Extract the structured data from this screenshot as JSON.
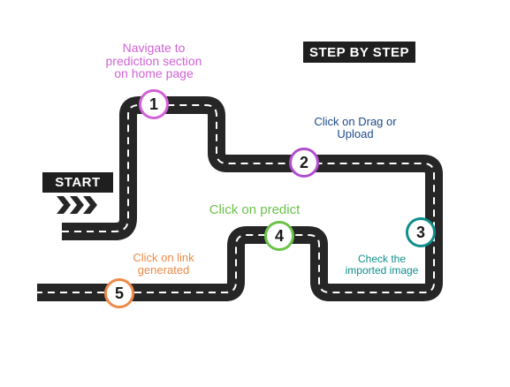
{
  "title": "STEP BY STEP",
  "start_label": "START",
  "colors": {
    "road": "#262626",
    "lane": "#ffffff",
    "step1": "#d162d6",
    "step2": "#b14ed0",
    "step3": "#0f8f8c",
    "step4": "#6cc24a",
    "step5": "#ee8a49",
    "step2_text": "#1e4a8c"
  },
  "steps": [
    {
      "number": "1",
      "text": [
        "Navigate to",
        "prediction section",
        "on home page"
      ]
    },
    {
      "number": "2",
      "text": [
        "Click on Drag or",
        "Upload"
      ]
    },
    {
      "number": "3",
      "text": [
        "Check the",
        "imported image"
      ]
    },
    {
      "number": "4",
      "text": [
        "Click on predict"
      ]
    },
    {
      "number": "5",
      "text": [
        "Click on link",
        "generated"
      ]
    }
  ]
}
